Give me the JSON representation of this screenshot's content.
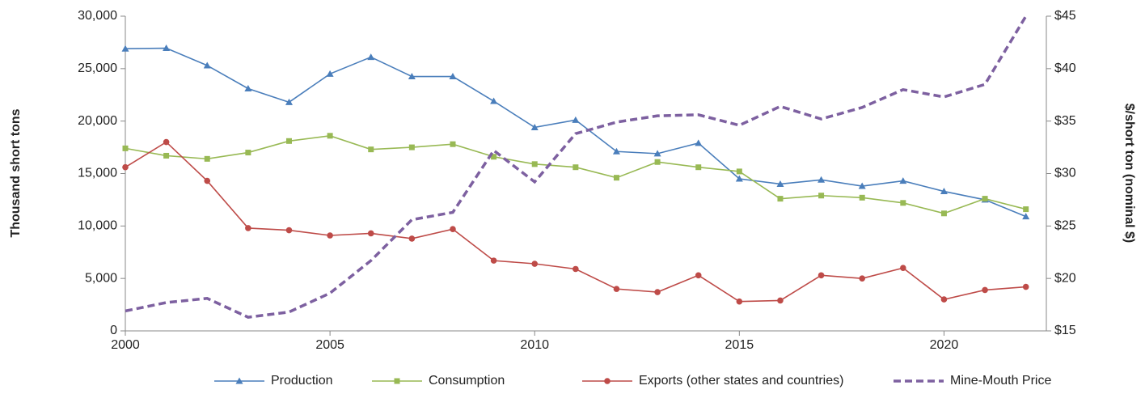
{
  "chart_data": {
    "type": "line",
    "x": [
      2000,
      2001,
      2002,
      2003,
      2004,
      2005,
      2006,
      2007,
      2008,
      2009,
      2010,
      2011,
      2012,
      2013,
      2014,
      2015,
      2016,
      2017,
      2018,
      2019,
      2020,
      2021,
      2022
    ],
    "xlim": [
      2000,
      2022.5
    ],
    "xticks": [
      2000,
      2005,
      2010,
      2015,
      2020
    ],
    "ylabel": "Thousand short tons",
    "y2label": "$/short ton  (nominal $)",
    "ylim": [
      0,
      30000
    ],
    "yticks": [
      0,
      {
        "value": 5000,
        "label": "5,000"
      },
      {
        "value": 10000,
        "label": "10,000"
      },
      {
        "value": 15000,
        "label": "15,000"
      },
      {
        "value": 20000,
        "label": "20,000"
      },
      {
        "value": 25000,
        "label": "25,000"
      },
      {
        "value": 30000,
        "label": "30,000"
      }
    ],
    "y2lim": [
      15,
      45
    ],
    "y2ticks": [
      {
        "value": 15,
        "label": "$15"
      },
      {
        "value": 20,
        "label": "$20"
      },
      {
        "value": 25,
        "label": "$25"
      },
      {
        "value": 30,
        "label": "$30"
      },
      {
        "value": 35,
        "label": "$35"
      },
      {
        "value": 40,
        "label": "$40"
      },
      {
        "value": 45,
        "label": "$45"
      }
    ],
    "series": [
      {
        "name": "Production",
        "color": "#4a7ebb",
        "marker": "triangle",
        "values": [
          26900,
          26950,
          25300,
          23100,
          21800,
          24500,
          26100,
          24250,
          24250,
          21900,
          19400,
          20100,
          17100,
          16900,
          17900,
          14500,
          14000,
          14400,
          13800,
          14300,
          13300,
          12500,
          10900
        ]
      },
      {
        "name": "Consumption",
        "color": "#98b954",
        "marker": "square",
        "values": [
          17400,
          16700,
          16400,
          17000,
          18100,
          18600,
          17300,
          17500,
          17800,
          16600,
          15900,
          15600,
          14600,
          16100,
          15600,
          15200,
          12600,
          12900,
          12700,
          12200,
          11200,
          12600,
          11600
        ]
      },
      {
        "name": "Exports (other states and countries)",
        "color": "#be4b48",
        "marker": "circle",
        "values": [
          15600,
          18000,
          14300,
          9800,
          9600,
          9100,
          9300,
          8800,
          9700,
          6700,
          6400,
          5900,
          4000,
          3700,
          5300,
          2800,
          2900,
          5300,
          5000,
          6000,
          3000,
          3900,
          4200
        ]
      },
      {
        "name": "Mine-Mouth Price",
        "color": "#7d60a0",
        "dashed": true,
        "axis": "y2",
        "values": [
          16.9,
          17.7,
          18.1,
          16.3,
          16.8,
          18.6,
          21.7,
          25.6,
          26.3,
          32.2,
          29.2,
          33.8,
          34.9,
          35.5,
          35.6,
          34.6,
          36.4,
          35.2,
          36.3,
          38.0,
          37.3,
          38.5,
          45.0
        ]
      }
    ]
  }
}
